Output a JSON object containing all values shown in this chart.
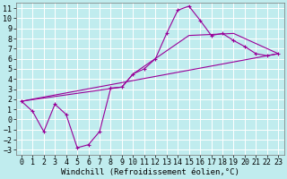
{
  "xlabel": "Windchill (Refroidissement éolien,°C)",
  "bg_color": "#c0ecee",
  "grid_color": "#ffffff",
  "line_color": "#990099",
  "xlim": [
    -0.5,
    23.5
  ],
  "ylim": [
    -3.5,
    11.5
  ],
  "xticks": [
    0,
    1,
    2,
    3,
    4,
    5,
    6,
    7,
    8,
    9,
    10,
    11,
    12,
    13,
    14,
    15,
    16,
    17,
    18,
    19,
    20,
    21,
    22,
    23
  ],
  "yticks": [
    -3,
    -2,
    -1,
    0,
    1,
    2,
    3,
    4,
    5,
    6,
    7,
    8,
    9,
    10,
    11
  ],
  "main_x": [
    0,
    1,
    2,
    3,
    4,
    5,
    6,
    7,
    8,
    9,
    10,
    11,
    12,
    13,
    14,
    15,
    16,
    17,
    18,
    19,
    20,
    21,
    22,
    23
  ],
  "main_y": [
    1.8,
    0.8,
    -1.2,
    1.5,
    0.5,
    -2.8,
    -2.5,
    -1.2,
    3.1,
    3.2,
    4.5,
    5.0,
    6.0,
    8.5,
    10.8,
    11.2,
    9.8,
    8.3,
    8.5,
    7.8,
    7.2,
    6.5,
    6.3,
    6.5
  ],
  "line2_x": [
    0,
    23
  ],
  "line2_y": [
    1.8,
    6.5
  ],
  "line3_x": [
    0,
    9,
    10,
    15,
    19,
    23
  ],
  "line3_y": [
    1.8,
    3.2,
    4.5,
    8.3,
    8.5,
    6.5
  ],
  "font": "monospace",
  "axis_font_size": 6,
  "xlabel_font_size": 6.5
}
